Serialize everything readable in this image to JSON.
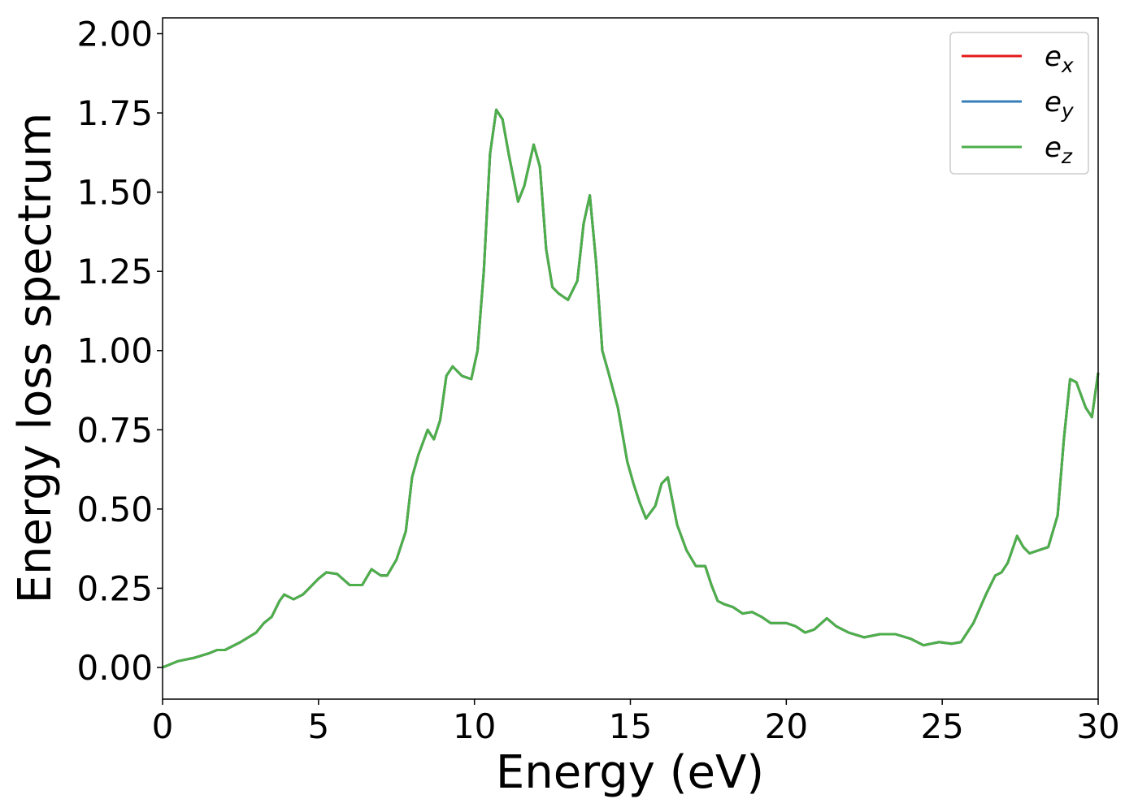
{
  "chart_data": {
    "type": "line",
    "xlabel": "Energy (eV)",
    "ylabel": "Energy loss spectrum",
    "x": [
      0,
      0.5,
      1,
      1.5,
      1.75,
      2,
      2.5,
      3,
      3.25,
      3.5,
      3.75,
      3.9,
      4.2,
      4.5,
      5,
      5.25,
      5.6,
      6,
      6.4,
      6.7,
      7,
      7.2,
      7.5,
      7.8,
      8,
      8.2,
      8.5,
      8.7,
      8.9,
      9.1,
      9.3,
      9.6,
      9.9,
      10.1,
      10.3,
      10.5,
      10.7,
      10.9,
      11.1,
      11.4,
      11.6,
      11.9,
      12.1,
      12.3,
      12.5,
      12.7,
      13,
      13.3,
      13.5,
      13.7,
      13.9,
      14.1,
      14.3,
      14.6,
      14.9,
      15.1,
      15.3,
      15.5,
      15.8,
      16,
      16.2,
      16.5,
      16.8,
      17.1,
      17.4,
      17.6,
      17.8,
      18,
      18.3,
      18.6,
      18.9,
      19.2,
      19.5,
      20,
      20.3,
      20.6,
      20.9,
      21.3,
      21.6,
      22,
      22.5,
      23,
      23.5,
      24,
      24.4,
      24.9,
      25.3,
      25.6,
      26,
      26.4,
      26.7,
      26.9,
      27.1,
      27.4,
      27.6,
      27.8,
      28.1,
      28.4,
      28.7,
      28.9,
      29.1,
      29.3,
      29.6,
      29.8,
      30
    ],
    "series": [
      {
        "name": "ex",
        "color": "#e41a1c",
        "values": [
          0,
          0.02,
          0.03,
          0.045,
          0.055,
          0.055,
          0.08,
          0.11,
          0.14,
          0.16,
          0.21,
          0.23,
          0.215,
          0.23,
          0.28,
          0.3,
          0.295,
          0.26,
          0.26,
          0.31,
          0.29,
          0.29,
          0.34,
          0.43,
          0.6,
          0.67,
          0.75,
          0.72,
          0.78,
          0.92,
          0.95,
          0.92,
          0.91,
          1.0,
          1.25,
          1.62,
          1.76,
          1.73,
          1.62,
          1.47,
          1.52,
          1.65,
          1.58,
          1.32,
          1.2,
          1.18,
          1.16,
          1.22,
          1.4,
          1.49,
          1.28,
          1.0,
          0.93,
          0.82,
          0.65,
          0.58,
          0.52,
          0.47,
          0.51,
          0.58,
          0.6,
          0.45,
          0.37,
          0.32,
          0.32,
          0.26,
          0.21,
          0.2,
          0.19,
          0.17,
          0.175,
          0.16,
          0.14,
          0.14,
          0.13,
          0.11,
          0.12,
          0.155,
          0.13,
          0.11,
          0.095,
          0.105,
          0.105,
          0.09,
          0.07,
          0.08,
          0.075,
          0.08,
          0.14,
          0.23,
          0.29,
          0.3,
          0.33,
          0.415,
          0.38,
          0.36,
          0.37,
          0.38,
          0.48,
          0.72,
          0.91,
          0.9,
          0.82,
          0.79,
          0.93
        ]
      },
      {
        "name": "ey",
        "color": "#377eb8",
        "values": [
          0,
          0.02,
          0.03,
          0.045,
          0.055,
          0.055,
          0.08,
          0.11,
          0.14,
          0.16,
          0.21,
          0.23,
          0.215,
          0.23,
          0.28,
          0.3,
          0.295,
          0.26,
          0.26,
          0.31,
          0.29,
          0.29,
          0.34,
          0.43,
          0.6,
          0.67,
          0.75,
          0.72,
          0.78,
          0.92,
          0.95,
          0.92,
          0.91,
          1.0,
          1.25,
          1.62,
          1.76,
          1.73,
          1.62,
          1.47,
          1.52,
          1.65,
          1.58,
          1.32,
          1.2,
          1.18,
          1.16,
          1.22,
          1.4,
          1.49,
          1.28,
          1.0,
          0.93,
          0.82,
          0.65,
          0.58,
          0.52,
          0.47,
          0.51,
          0.58,
          0.6,
          0.45,
          0.37,
          0.32,
          0.32,
          0.26,
          0.21,
          0.2,
          0.19,
          0.17,
          0.175,
          0.16,
          0.14,
          0.14,
          0.13,
          0.11,
          0.12,
          0.155,
          0.13,
          0.11,
          0.095,
          0.105,
          0.105,
          0.09,
          0.07,
          0.08,
          0.075,
          0.08,
          0.14,
          0.23,
          0.29,
          0.3,
          0.33,
          0.415,
          0.38,
          0.36,
          0.37,
          0.38,
          0.48,
          0.72,
          0.91,
          0.9,
          0.82,
          0.79,
          0.93
        ]
      },
      {
        "name": "ez",
        "color": "#4daf4a",
        "values": [
          0,
          0.02,
          0.03,
          0.045,
          0.055,
          0.055,
          0.08,
          0.11,
          0.14,
          0.16,
          0.21,
          0.23,
          0.215,
          0.23,
          0.28,
          0.3,
          0.295,
          0.26,
          0.26,
          0.31,
          0.29,
          0.29,
          0.34,
          0.43,
          0.6,
          0.67,
          0.75,
          0.72,
          0.78,
          0.92,
          0.95,
          0.92,
          0.91,
          1.0,
          1.25,
          1.62,
          1.76,
          1.73,
          1.62,
          1.47,
          1.52,
          1.65,
          1.58,
          1.32,
          1.2,
          1.18,
          1.16,
          1.22,
          1.4,
          1.49,
          1.28,
          1.0,
          0.93,
          0.82,
          0.65,
          0.58,
          0.52,
          0.47,
          0.51,
          0.58,
          0.6,
          0.45,
          0.37,
          0.32,
          0.32,
          0.26,
          0.21,
          0.2,
          0.19,
          0.17,
          0.175,
          0.16,
          0.14,
          0.14,
          0.13,
          0.11,
          0.12,
          0.155,
          0.13,
          0.11,
          0.095,
          0.105,
          0.105,
          0.09,
          0.07,
          0.08,
          0.075,
          0.08,
          0.14,
          0.23,
          0.29,
          0.3,
          0.33,
          0.415,
          0.38,
          0.36,
          0.37,
          0.38,
          0.48,
          0.72,
          0.91,
          0.9,
          0.82,
          0.79,
          0.93
        ]
      }
    ],
    "xlim": [
      0,
      30
    ],
    "xticks": [
      0,
      5,
      10,
      15,
      20,
      25,
      30
    ],
    "ylim": [
      -0.1,
      2.05
    ],
    "yticks": [
      {
        "value": 0,
        "label": "0.00"
      },
      {
        "value": 0.25,
        "label": "0.25"
      },
      {
        "value": 0.5,
        "label": "0.50"
      },
      {
        "value": 0.75,
        "label": "0.75"
      },
      {
        "value": 1,
        "label": "1.00"
      },
      {
        "value": 1.25,
        "label": "1.25"
      },
      {
        "value": 1.5,
        "label": "1.50"
      },
      {
        "value": 1.75,
        "label": "1.75"
      },
      {
        "value": 2,
        "label": "2.00"
      }
    ],
    "grid": false,
    "legend": "upper right"
  }
}
